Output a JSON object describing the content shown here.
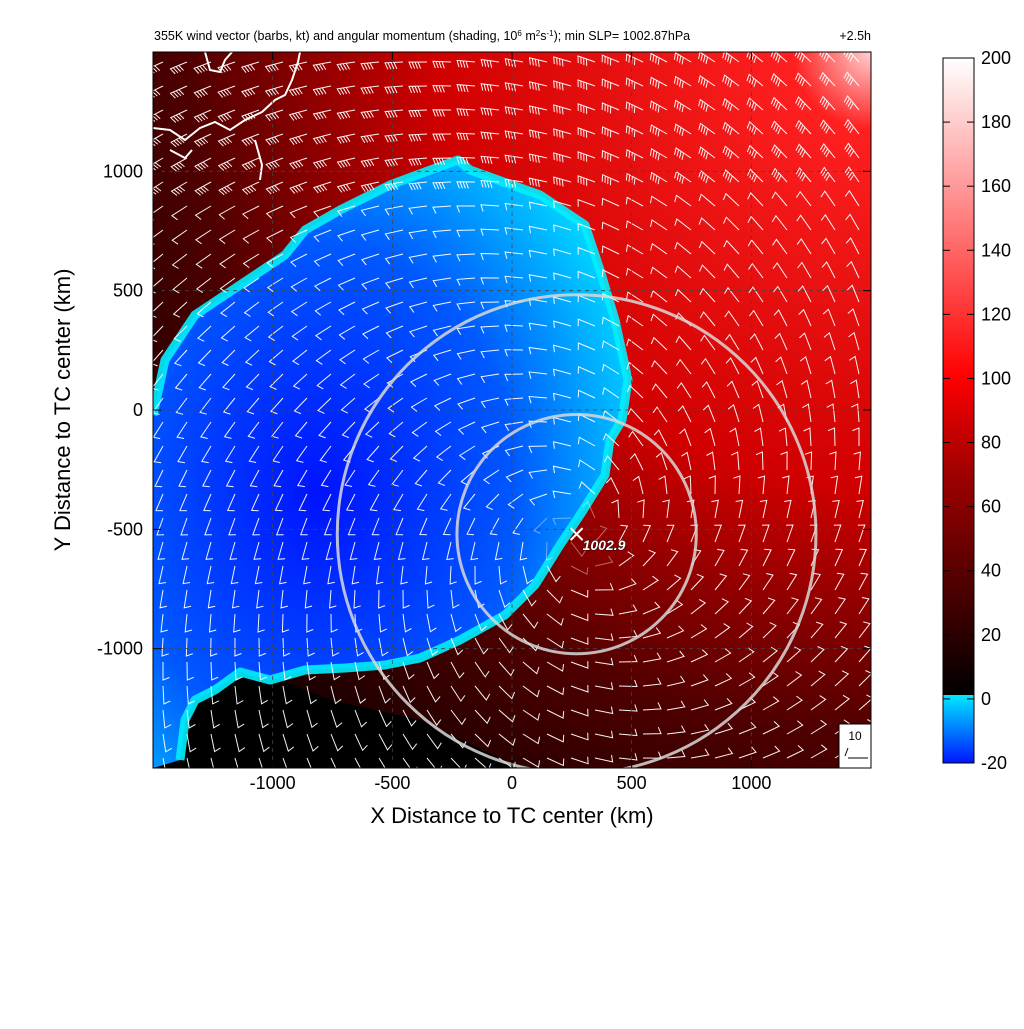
{
  "chart_data": {
    "type": "heatmap",
    "title_main": "355K wind vector (barbs, kt) and angular momentum (shading, 10",
    "title_sup1": "6",
    "title_mid1": " m",
    "title_sup2": "2",
    "title_mid2": "s",
    "title_sup3": "-1",
    "title_rest": "); min SLP= 1002.87hPa",
    "time_label": "+2.5h",
    "xlabel": "X Distance to TC center (km)",
    "ylabel": "Y Distance to TC center (km)",
    "xlim": [
      -1500,
      1500
    ],
    "ylim": [
      -1500,
      1500
    ],
    "x_ticks": [
      -1000,
      -500,
      0,
      500,
      1000
    ],
    "x_tick_labels": [
      "-1000",
      "-500",
      "0",
      "500",
      "1000"
    ],
    "y_ticks": [
      -1000,
      -500,
      0,
      500,
      1000
    ],
    "y_tick_labels": [
      "-1000",
      "-500",
      "0",
      "500",
      "1000"
    ],
    "grid": true,
    "colorbar": {
      "levels": [
        -20,
        0,
        20,
        40,
        60,
        80,
        100,
        120,
        140,
        160,
        180,
        200
      ],
      "tick_labels": [
        "-20",
        "0",
        "20",
        "40",
        "60",
        "80",
        "100",
        "120",
        "140",
        "160",
        "180",
        "200"
      ],
      "colors": {
        "neg_low": "#0015ff",
        "neg_high": "#00e8ff",
        "zero": "#000000",
        "mid": "#ff0000",
        "high": "#ffffff"
      }
    },
    "center_marker": {
      "x": 270,
      "y": -520,
      "label": "1002.9"
    },
    "range_rings_km": [
      500,
      1000
    ],
    "barb_reference": {
      "label": "10"
    },
    "accent_colors": {
      "ring": "#d8d8d8",
      "barb": "#ffffff",
      "coast": "#ffffff"
    }
  }
}
